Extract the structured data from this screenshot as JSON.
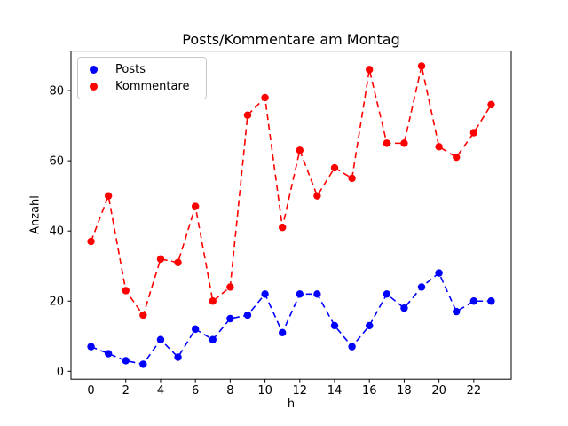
{
  "chart_data": {
    "type": "line",
    "title": "Posts/Kommentare am Montag",
    "xlabel": "h",
    "ylabel": "Anzahl",
    "x": [
      0,
      1,
      2,
      3,
      4,
      5,
      6,
      7,
      8,
      9,
      10,
      11,
      12,
      13,
      14,
      15,
      16,
      17,
      18,
      19,
      20,
      21,
      22,
      23
    ],
    "series": [
      {
        "name": "Posts",
        "color": "#0000ff",
        "linestyle": "dashed",
        "marker": "circle",
        "values": [
          7,
          5,
          3,
          2,
          9,
          4,
          12,
          9,
          15,
          16,
          22,
          11,
          22,
          22,
          13,
          7,
          13,
          22,
          18,
          24,
          28,
          17,
          20,
          20
        ]
      },
      {
        "name": "Kommentare",
        "color": "#ff0000",
        "linestyle": "dashed",
        "marker": "circle",
        "values": [
          37,
          50,
          23,
          16,
          32,
          31,
          47,
          20,
          24,
          73,
          78,
          41,
          63,
          50,
          58,
          55,
          86,
          65,
          65,
          87,
          64,
          61,
          68,
          76
        ]
      }
    ],
    "x_ticks": [
      0,
      2,
      4,
      6,
      8,
      10,
      12,
      14,
      16,
      18,
      20,
      22
    ],
    "y_ticks": [
      0,
      20,
      40,
      60,
      80
    ],
    "xlim": [
      -1.15,
      24.15
    ],
    "ylim": [
      -2.25,
      91.25
    ],
    "grid": false,
    "legend_position": "upper-left",
    "background": "#ffffff",
    "axis_color": "#000000"
  }
}
